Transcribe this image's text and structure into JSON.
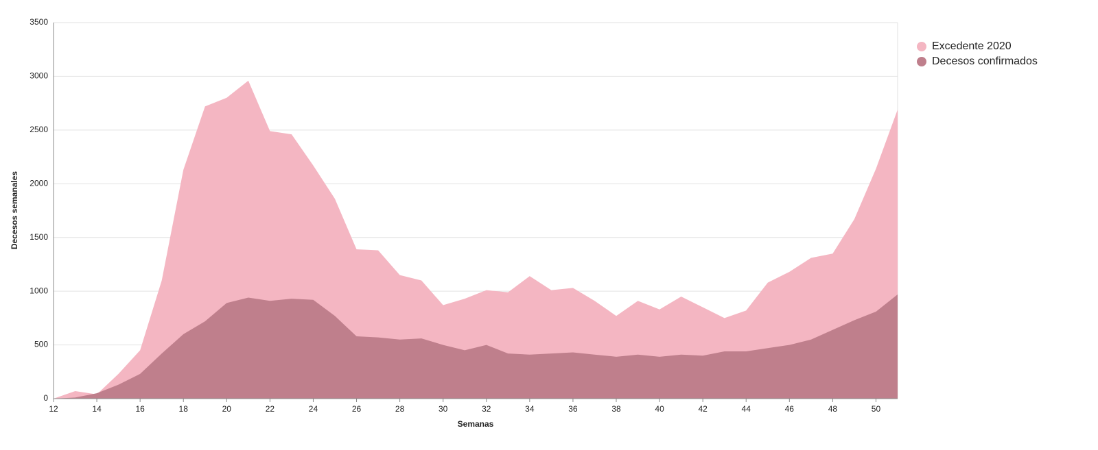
{
  "chart_data": {
    "type": "area",
    "x_label": "Semanas",
    "y_label": "Decesos semanales",
    "x": [
      12,
      13,
      14,
      15,
      16,
      17,
      18,
      19,
      20,
      21,
      22,
      23,
      24,
      25,
      26,
      27,
      28,
      29,
      30,
      31,
      32,
      33,
      34,
      35,
      36,
      37,
      38,
      39,
      40,
      41,
      42,
      43,
      44,
      45,
      46,
      47,
      48,
      49,
      50,
      51
    ],
    "series": [
      {
        "name": "Excedente 2020",
        "color": "#f4b6c2",
        "values": [
          0,
          70,
          40,
          230,
          450,
          1100,
          2130,
          2720,
          2800,
          2960,
          2490,
          2460,
          2170,
          1860,
          1390,
          1380,
          1150,
          1100,
          870,
          930,
          1010,
          990,
          1140,
          1010,
          1030,
          910,
          770,
          910,
          830,
          950,
          850,
          750,
          820,
          1080,
          1180,
          1310,
          1350,
          1670,
          2140,
          2690
        ]
      },
      {
        "name": "Decesos confirmados",
        "color": "#bf7f8c",
        "values": [
          0,
          10,
          50,
          130,
          230,
          420,
          600,
          720,
          890,
          940,
          910,
          930,
          920,
          770,
          580,
          570,
          550,
          560,
          500,
          450,
          500,
          420,
          410,
          420,
          430,
          410,
          390,
          410,
          390,
          410,
          400,
          440,
          440,
          470,
          500,
          550,
          640,
          730,
          810,
          970
        ]
      }
    ],
    "xlim": [
      12,
      51
    ],
    "xticks": [
      12,
      14,
      16,
      18,
      20,
      22,
      24,
      26,
      28,
      30,
      32,
      34,
      36,
      38,
      40,
      42,
      44,
      46,
      48,
      50
    ],
    "ylim": [
      0,
      3500
    ],
    "yticks": [
      0,
      500,
      1000,
      1500,
      2000,
      2500,
      3000,
      3500
    ],
    "grid": true,
    "legend": "top-right"
  }
}
